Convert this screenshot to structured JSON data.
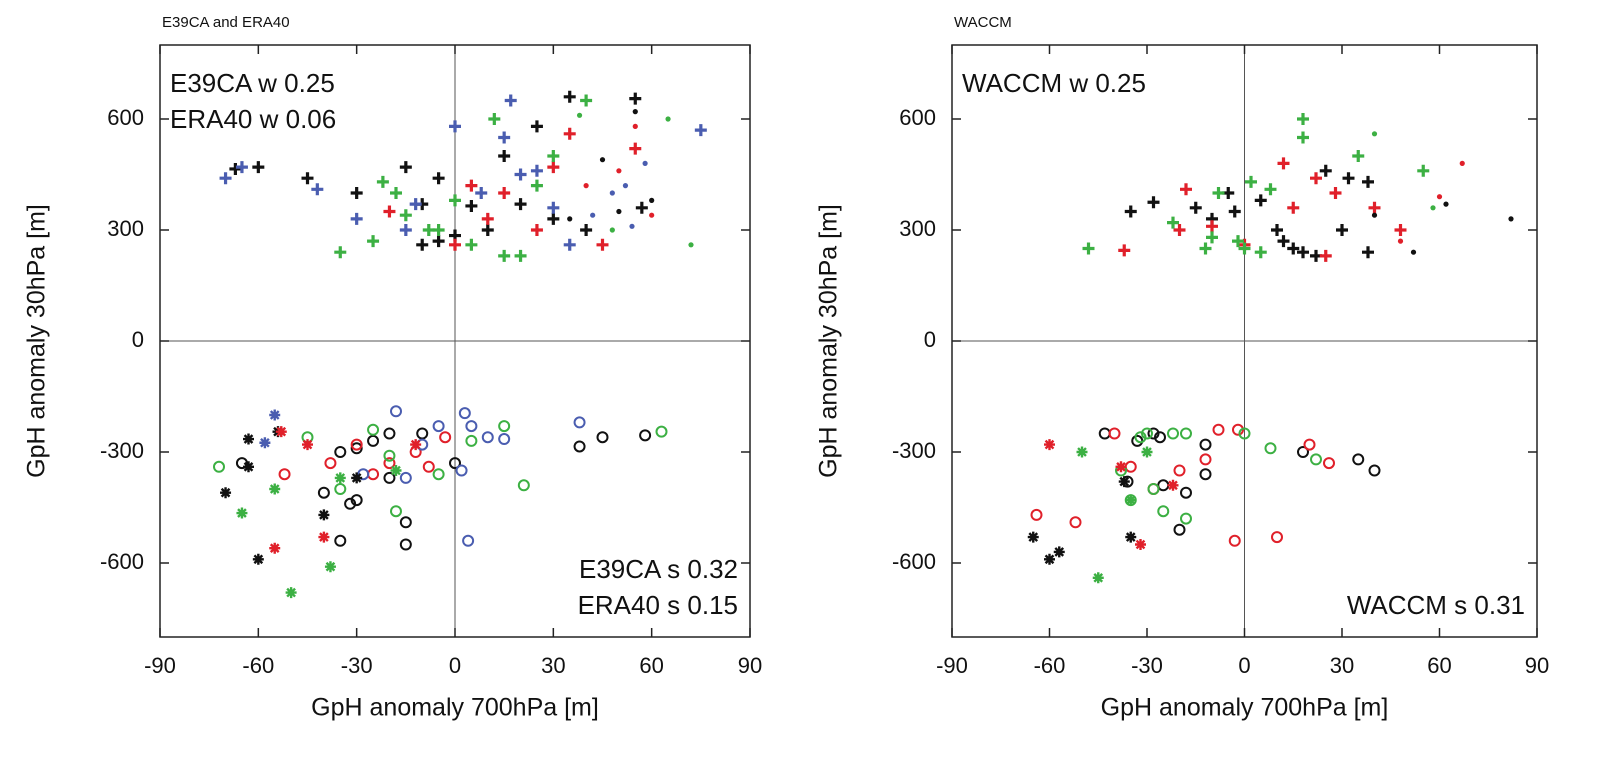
{
  "chart_data": [
    {
      "type": "scatter",
      "title": "E39CA and ERA40",
      "xlabel": "GpH anomaly 700hPa [m]",
      "ylabel": "GpH anomaly 30hPa [m]",
      "xlim": [
        -90,
        90
      ],
      "ylim": [
        -800,
        800
      ],
      "xticks": [
        -90,
        -60,
        -30,
        0,
        30,
        60,
        90
      ],
      "yticks": [
        -600,
        -300,
        0,
        300,
        600
      ],
      "zero_lines": true,
      "annotations_top": [
        {
          "text": "E39CA w 0.25",
          "color": "#111111"
        },
        {
          "text": "ERA40 w 0.06",
          "color": "#4a5db0"
        }
      ],
      "annotations_bottom": [
        {
          "text": "E39CA s 0.32",
          "color": "#111111"
        },
        {
          "text": "ERA40 s 0.15",
          "color": "#4a5db0"
        }
      ],
      "series": [
        {
          "color": "#111111",
          "marker": "plus",
          "x": [
            -67,
            -60,
            -45,
            -30,
            -15,
            -10,
            -5,
            5,
            10,
            15,
            20,
            25,
            30,
            35,
            40,
            55,
            57,
            -10,
            -5,
            0
          ],
          "y": [
            465,
            470,
            440,
            400,
            470,
            370,
            440,
            365,
            300,
            500,
            370,
            580,
            330,
            660,
            300,
            655,
            360,
            260,
            270,
            285
          ]
        },
        {
          "color": "#e0202a",
          "marker": "plus",
          "x": [
            0,
            15,
            25,
            35,
            45,
            -20,
            10,
            30,
            55,
            5
          ],
          "y": [
            260,
            400,
            300,
            560,
            260,
            350,
            330,
            470,
            520,
            420
          ]
        },
        {
          "color": "#3cb043",
          "marker": "plus",
          "x": [
            -35,
            -25,
            -15,
            -5,
            5,
            15,
            20,
            25,
            30,
            12,
            -18,
            0,
            -22,
            40,
            -8
          ],
          "y": [
            240,
            270,
            340,
            300,
            260,
            230,
            230,
            420,
            500,
            600,
            400,
            380,
            430,
            650,
            300
          ]
        },
        {
          "color": "#4a5db0",
          "marker": "plus",
          "x": [
            -70,
            -65,
            -42,
            -30,
            0,
            15,
            17,
            20,
            25,
            30,
            35,
            75,
            -12,
            -15,
            8
          ],
          "y": [
            440,
            470,
            410,
            330,
            580,
            550,
            650,
            450,
            460,
            360,
            260,
            570,
            370,
            300,
            400
          ]
        },
        {
          "color": "#111111",
          "marker": "dot",
          "x": [
            45,
            50,
            60,
            55,
            35
          ],
          "y": [
            490,
            350,
            380,
            620,
            330
          ]
        },
        {
          "color": "#e0202a",
          "marker": "dot",
          "x": [
            55,
            60,
            50,
            40
          ],
          "y": [
            580,
            340,
            460,
            420
          ]
        },
        {
          "color": "#3cb043",
          "marker": "dot",
          "x": [
            65,
            72,
            48,
            38
          ],
          "y": [
            600,
            260,
            300,
            610
          ]
        },
        {
          "color": "#4a5db0",
          "marker": "dot",
          "x": [
            48,
            52,
            54,
            42,
            58
          ],
          "y": [
            400,
            420,
            310,
            340,
            480
          ]
        },
        {
          "color": "#111111",
          "marker": "circle",
          "x": [
            -65,
            -40,
            -35,
            -30,
            -25,
            -20,
            -15,
            -15,
            -30,
            -35,
            -10,
            0,
            38,
            45,
            58,
            -20,
            -32
          ],
          "y": [
            -330,
            -410,
            -300,
            -290,
            -270,
            -250,
            -490,
            -550,
            -430,
            -540,
            -250,
            -330,
            -285,
            -260,
            -255,
            -370,
            -440
          ]
        },
        {
          "color": "#e0202a",
          "marker": "circle",
          "x": [
            -52,
            -38,
            -25,
            -12,
            -8,
            -3,
            -20,
            -30
          ],
          "y": [
            -360,
            -330,
            -360,
            -300,
            -340,
            -260,
            -330,
            -280
          ]
        },
        {
          "color": "#3cb043",
          "marker": "circle",
          "x": [
            -72,
            -45,
            -35,
            -20,
            -18,
            -5,
            5,
            15,
            21,
            63,
            -25
          ],
          "y": [
            -340,
            -260,
            -400,
            -310,
            -460,
            -360,
            -270,
            -230,
            -390,
            -245,
            -240
          ]
        },
        {
          "color": "#4a5db0",
          "marker": "circle",
          "x": [
            -28,
            -18,
            -10,
            -5,
            3,
            5,
            10,
            15,
            4,
            38,
            2,
            -15
          ],
          "y": [
            -360,
            -190,
            -280,
            -230,
            -195,
            -230,
            -260,
            -265,
            -540,
            -220,
            -350,
            -370
          ]
        },
        {
          "color": "#111111",
          "marker": "asterisk",
          "x": [
            -70,
            -63,
            -63,
            -60,
            -54,
            -40,
            -30
          ],
          "y": [
            -410,
            -265,
            -340,
            -590,
            -245,
            -470,
            -370
          ]
        },
        {
          "color": "#e0202a",
          "marker": "asterisk",
          "x": [
            -55,
            -45,
            -40,
            -53,
            -12
          ],
          "y": [
            -560,
            -280,
            -530,
            -245,
            -280
          ]
        },
        {
          "color": "#3cb043",
          "marker": "asterisk",
          "x": [
            -65,
            -55,
            -50,
            -38,
            -35,
            -18
          ],
          "y": [
            -465,
            -400,
            -680,
            -610,
            -370,
            -350
          ]
        },
        {
          "color": "#4a5db0",
          "marker": "asterisk",
          "x": [
            -55,
            -58
          ],
          "y": [
            -200,
            -275
          ]
        }
      ]
    },
    {
      "type": "scatter",
      "title": "WACCM",
      "xlabel": "GpH anomaly 700hPa [m]",
      "ylabel": "GpH anomaly 30hPa [m]",
      "xlim": [
        -90,
        90
      ],
      "ylim": [
        -800,
        800
      ],
      "xticks": [
        -90,
        -60,
        -30,
        0,
        30,
        60,
        90
      ],
      "yticks": [
        -600,
        -300,
        0,
        300,
        600
      ],
      "zero_lines": true,
      "annotations_top": [
        {
          "text": "WACCM w 0.25",
          "color": "#111111"
        }
      ],
      "annotations_bottom": [
        {
          "text": "WACCM s 0.31",
          "color": "#111111"
        }
      ],
      "series": [
        {
          "color": "#111111",
          "marker": "plus",
          "x": [
            -35,
            -28,
            -15,
            -10,
            -5,
            -3,
            10,
            12,
            15,
            22,
            25,
            30,
            32,
            38,
            38,
            18,
            5
          ],
          "y": [
            350,
            375,
            360,
            330,
            400,
            350,
            300,
            270,
            250,
            230,
            460,
            300,
            440,
            430,
            240,
            240,
            380
          ]
        },
        {
          "color": "#e0202a",
          "marker": "plus",
          "x": [
            -37,
            -20,
            -18,
            -10,
            0,
            12,
            15,
            25,
            28,
            40,
            48,
            22
          ],
          "y": [
            245,
            300,
            410,
            310,
            260,
            480,
            360,
            230,
            400,
            360,
            300,
            440
          ]
        },
        {
          "color": "#3cb043",
          "marker": "plus",
          "x": [
            -48,
            -22,
            -12,
            -8,
            -2,
            0,
            5,
            8,
            18,
            18,
            35,
            55,
            2,
            -10
          ],
          "y": [
            250,
            320,
            250,
            400,
            270,
            250,
            240,
            410,
            600,
            550,
            500,
            460,
            430,
            280
          ]
        },
        {
          "color": "#111111",
          "marker": "dot",
          "x": [
            52,
            82,
            62,
            40
          ],
          "y": [
            240,
            330,
            370,
            340
          ]
        },
        {
          "color": "#e0202a",
          "marker": "dot",
          "x": [
            67,
            60,
            48
          ],
          "y": [
            480,
            390,
            270
          ]
        },
        {
          "color": "#3cb043",
          "marker": "dot",
          "x": [
            40,
            58
          ],
          "y": [
            560,
            360
          ]
        },
        {
          "color": "#111111",
          "marker": "circle",
          "x": [
            -43,
            -36,
            -33,
            -28,
            -26,
            -20,
            -18,
            -12,
            -12,
            18,
            35,
            40,
            -25
          ],
          "y": [
            -250,
            -380,
            -270,
            -250,
            -260,
            -510,
            -410,
            -360,
            -280,
            -300,
            -320,
            -350,
            -390
          ]
        },
        {
          "color": "#e0202a",
          "marker": "circle",
          "x": [
            -64,
            -52,
            -40,
            -35,
            -20,
            -12,
            -8,
            -2,
            -3,
            10,
            20,
            26,
            -28
          ],
          "y": [
            -470,
            -490,
            -250,
            -340,
            -350,
            -320,
            -240,
            -240,
            -540,
            -530,
            -280,
            -330,
            -400
          ]
        },
        {
          "color": "#3cb043",
          "marker": "circle",
          "x": [
            -38,
            -30,
            -28,
            -25,
            -22,
            -18,
            -18,
            0,
            8,
            22,
            -35,
            -32
          ],
          "y": [
            -350,
            -250,
            -400,
            -460,
            -250,
            -250,
            -480,
            -250,
            -290,
            -320,
            -430,
            -260
          ]
        },
        {
          "color": "#111111",
          "marker": "asterisk",
          "x": [
            -65,
            -60,
            -57,
            -37,
            -35
          ],
          "y": [
            -530,
            -590,
            -570,
            -380,
            -530
          ]
        },
        {
          "color": "#e0202a",
          "marker": "asterisk",
          "x": [
            -60,
            -32,
            -38,
            -22
          ],
          "y": [
            -280,
            -550,
            -340,
            -390
          ]
        },
        {
          "color": "#3cb043",
          "marker": "asterisk",
          "x": [
            -50,
            -45,
            -35,
            -30
          ],
          "y": [
            -300,
            -640,
            -430,
            -300
          ]
        }
      ]
    }
  ]
}
